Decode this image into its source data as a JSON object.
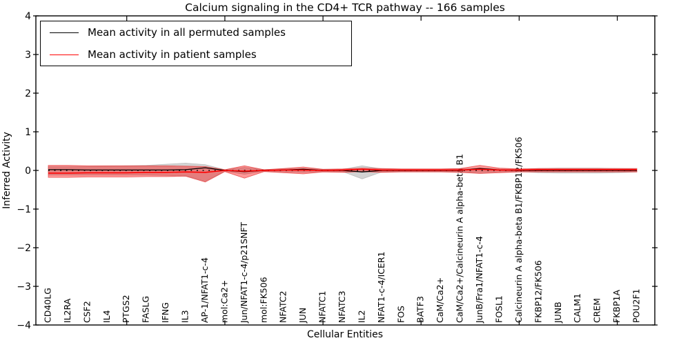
{
  "chart_data": {
    "type": "line",
    "title": "Calcium signaling in the CD4+ TCR pathway -- 166 samples",
    "xlabel": "Cellular Entities",
    "ylabel": "Inferred Activity",
    "ylim": [
      -4,
      4
    ],
    "ytick_values": [
      4,
      3,
      2,
      1,
      0,
      -1,
      -2,
      -3,
      -4
    ],
    "ytick_labels": [
      "4",
      "3",
      "2",
      "1",
      "0",
      "−1",
      "−2",
      "−3",
      "−4"
    ],
    "x_major_tick_indices": [
      4,
      9,
      14,
      19,
      24,
      29
    ],
    "grid": false,
    "legend_position": "upper left",
    "zero_line": {
      "style": "dotted",
      "color": "#000000",
      "y": 0
    },
    "categories": [
      "CD40LG",
      "IL2RA",
      "CSF2",
      "IL4",
      "PTGS2",
      "FASLG",
      "IFNG",
      "IL3",
      "AP-1/NFAT1-c-4",
      "mol:Ca2+",
      "Jun/NFAT1-c-4/p21SNFT",
      "mol:FK506",
      "NFATC2",
      "JUN",
      "NFATC1",
      "NFATC3",
      "IL2",
      "NFAT1-c-4/ICER1",
      "FOS",
      "BATF3",
      "CaM/Ca2+",
      "CaM/Ca2+/Calcineurin A alpha-beta B1",
      "JunB/Fra1/NFAT1-c-4",
      "FOSL1",
      "Calcineurin A alpha-beta B1/FKBP12/FK506",
      "FKBP12/FK506",
      "JUNB",
      "CALM1",
      "CREM",
      "FKBP1A",
      "POU2F1"
    ],
    "series": [
      {
        "name": "Mean activity in all permuted samples",
        "color": "#000000",
        "style": "solid",
        "values": [
          0.02,
          0.02,
          0.01,
          0.01,
          0.01,
          0.01,
          0.01,
          0.02,
          0.07,
          0.0,
          -0.03,
          0.0,
          0.01,
          0.03,
          0.0,
          0.0,
          -0.04,
          0.0,
          0.0,
          0.0,
          0.0,
          0.0,
          0.05,
          0.01,
          0.0,
          0.0,
          0.0,
          0.0,
          0.0,
          0.0,
          0.0
        ]
      },
      {
        "name": "Mean activity in patient samples",
        "color": "#ff0000",
        "style": "solid",
        "values": [
          -0.07,
          -0.07,
          -0.06,
          -0.06,
          -0.06,
          -0.05,
          -0.05,
          -0.04,
          -0.05,
          0.0,
          -0.02,
          0.0,
          0.01,
          0.01,
          0.0,
          0.01,
          0.03,
          0.01,
          0.01,
          0.01,
          0.01,
          0.01,
          0.03,
          0.01,
          0.01,
          0.02,
          0.02,
          0.02,
          0.02,
          0.02,
          0.02
        ]
      }
    ],
    "bands": [
      {
        "name": "permuted-samples-spread",
        "color": "#808080",
        "opacity": 0.35,
        "upper": [
          0.1,
          0.1,
          0.1,
          0.11,
          0.12,
          0.13,
          0.16,
          0.19,
          0.15,
          0.02,
          0.08,
          0.02,
          0.04,
          0.05,
          0.03,
          0.03,
          0.12,
          0.04,
          0.03,
          0.03,
          0.03,
          0.04,
          0.06,
          0.04,
          0.03,
          0.05,
          0.06,
          0.06,
          0.06,
          0.05,
          0.04
        ],
        "lower": [
          -0.12,
          -0.12,
          -0.12,
          -0.12,
          -0.12,
          -0.12,
          -0.13,
          -0.14,
          -0.28,
          -0.02,
          -0.1,
          -0.02,
          -0.04,
          -0.05,
          -0.03,
          -0.03,
          -0.22,
          -0.04,
          -0.03,
          -0.03,
          -0.03,
          -0.04,
          -0.06,
          -0.04,
          -0.03,
          -0.06,
          -0.07,
          -0.07,
          -0.07,
          -0.06,
          -0.04
        ]
      },
      {
        "name": "patient-samples-spread",
        "color": "#ff0000",
        "opacity": 0.4,
        "upper": [
          0.13,
          0.13,
          0.12,
          0.12,
          0.12,
          0.12,
          0.12,
          0.11,
          0.1,
          0.02,
          0.12,
          0.02,
          0.05,
          0.09,
          0.03,
          0.04,
          0.06,
          0.05,
          0.04,
          0.04,
          0.04,
          0.05,
          0.13,
          0.06,
          0.04,
          0.05,
          0.05,
          0.05,
          0.05,
          0.05,
          0.05
        ],
        "lower": [
          -0.18,
          -0.18,
          -0.17,
          -0.17,
          -0.17,
          -0.16,
          -0.16,
          -0.15,
          -0.3,
          -0.03,
          -0.2,
          -0.03,
          -0.06,
          -0.09,
          -0.04,
          -0.05,
          -0.03,
          -0.05,
          -0.04,
          -0.04,
          -0.04,
          -0.05,
          -0.08,
          -0.06,
          -0.04,
          -0.04,
          -0.04,
          -0.04,
          -0.04,
          -0.04,
          -0.04
        ]
      }
    ]
  }
}
